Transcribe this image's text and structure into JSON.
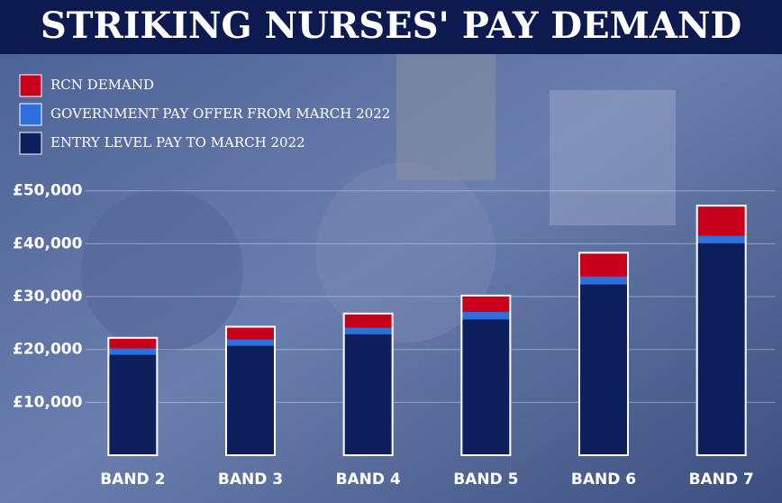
{
  "chart_data": {
    "type": "stacked_bar",
    "title": "STRIKING NURSES' PAY DEMAND",
    "categories": [
      "BAND 2",
      "BAND 3",
      "BAND 4",
      "BAND 5",
      "BAND 6",
      "BAND 7"
    ],
    "series": [
      {
        "name": "ENTRY LEVEL PAY TO MARCH 2022",
        "color": "#0e1f5e",
        "values": [
          19000,
          20700,
          22900,
          25700,
          32300,
          40100
        ]
      },
      {
        "name": "GOVERNMENT PAY OFFER FROM MARCH 2022",
        "color": "#2d6fdc",
        "values": [
          1200,
          1200,
          1200,
          1400,
          1500,
          1400
        ]
      },
      {
        "name": "RCN DEMAND",
        "color": "#c8001c",
        "values": [
          2000,
          2400,
          2700,
          3100,
          4500,
          5700
        ]
      }
    ],
    "ylim": [
      0,
      52000
    ],
    "yticks": [
      {
        "value": 10000,
        "label": "£10,000"
      },
      {
        "value": 20000,
        "label": "£20,000"
      },
      {
        "value": 30000,
        "label": "£30,000"
      },
      {
        "value": 40000,
        "label": "£40,000"
      },
      {
        "value": 50000,
        "label": "£50,000"
      }
    ],
    "grid": true
  }
}
